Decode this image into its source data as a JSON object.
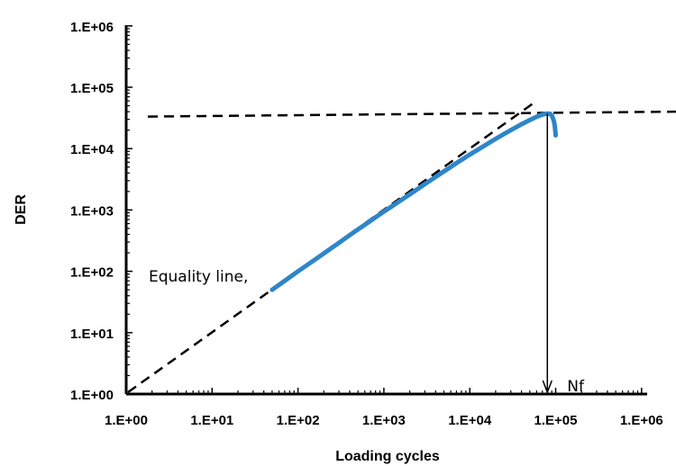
{
  "chart_data": {
    "type": "scatter",
    "xscale": "log",
    "yscale": "log",
    "xlabel": "Loading cycles",
    "ylabel": "DER",
    "xlim": [
      1,
      1000000
    ],
    "ylim": [
      1,
      1000000
    ],
    "x_tick_labels": [
      "1.E+00",
      "1.E+01",
      "1.E+02",
      "1.E+03",
      "1.E+04",
      "1.E+05",
      "1.E+06"
    ],
    "y_tick_labels": [
      "1.E+00",
      "1.E+01",
      "1.E+02",
      "1.E+03",
      "1.E+04",
      "1.E+05",
      "1.E+06"
    ],
    "x_ticks": [
      1,
      10,
      100,
      1000,
      10000,
      100000,
      1000000
    ],
    "y_ticks": [
      1,
      10,
      100,
      1000,
      10000,
      100000,
      1000000
    ],
    "grid": false,
    "series_color": "#2e86c8",
    "series": [
      {
        "x": [
          50,
          70,
          100,
          150,
          200,
          250,
          300,
          350,
          400,
          500,
          600,
          700,
          800,
          1000,
          1300,
          1600,
          2000,
          2500,
          3000,
          4000,
          5000,
          6000,
          7000,
          8000,
          10000,
          12000,
          15000,
          18000,
          20000,
          25000,
          30000,
          35000,
          40000,
          45000,
          50000,
          55000,
          60000,
          65000,
          70000,
          75000,
          80000,
          85000,
          88000,
          90000,
          92000,
          94000,
          96000,
          97500,
          98500,
          99500,
          100000
        ],
        "y": [
          50,
          70,
          100,
          148,
          196,
          244,
          292,
          340,
          388,
          482,
          575,
          668,
          760,
          940,
          1200,
          1460,
          1800,
          2220,
          2640,
          3450,
          4250,
          5030,
          5800,
          6540,
          8000,
          9300,
          11300,
          13200,
          14400,
          17300,
          20000,
          22500,
          25000,
          27200,
          29300,
          31200,
          33000,
          34500,
          35800,
          36700,
          37200,
          37000,
          36000,
          34500,
          32500,
          30000,
          27000,
          23500,
          20500,
          18000,
          16500
        ]
      }
    ],
    "equality_line": {
      "label": "Equality line,",
      "x": [
        1,
        60000
      ],
      "y": [
        1,
        60000
      ]
    },
    "horizontal_line": {
      "y": 35000,
      "x": [
        1,
        1000000
      ]
    },
    "nf_marker": {
      "label": "Nf",
      "x": 80000,
      "y_from": 37200,
      "y_to": 1
    }
  }
}
